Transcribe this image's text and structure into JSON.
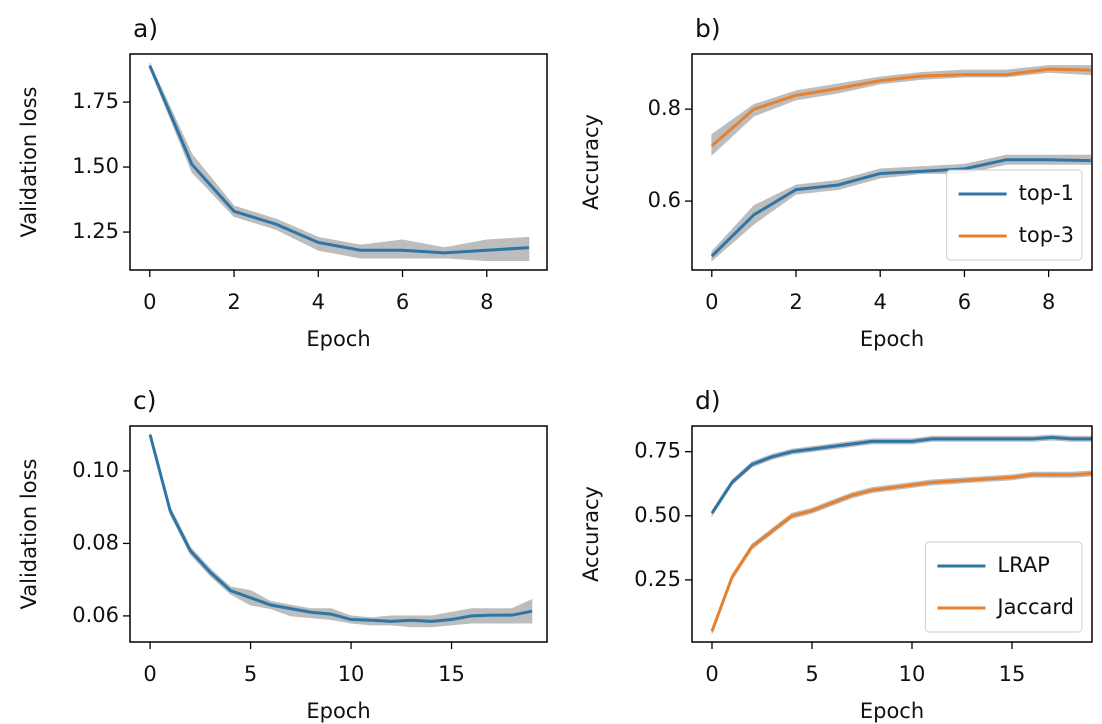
{
  "chart_data": [
    {
      "type": "line",
      "title": "a)",
      "xlabel": "Epoch",
      "ylabel": "Validation loss",
      "x": [
        0,
        1,
        2,
        3,
        4,
        5,
        6,
        7,
        8,
        9
      ],
      "series": [
        {
          "color": "#2e75a8",
          "values": [
            1.89,
            1.51,
            1.33,
            1.28,
            1.21,
            1.18,
            1.18,
            1.17,
            1.18,
            1.19
          ],
          "lower": [
            1.88,
            1.48,
            1.31,
            1.26,
            1.18,
            1.15,
            1.15,
            1.15,
            1.14,
            1.14
          ],
          "upper": [
            1.9,
            1.55,
            1.35,
            1.3,
            1.23,
            1.2,
            1.22,
            1.19,
            1.22,
            1.23
          ]
        }
      ],
      "band_color": "#bdbdbd",
      "xlim": [
        -0.47,
        9.43
      ],
      "xticks": [
        0,
        2,
        4,
        6,
        8
      ],
      "ylim": [
        1.104,
        1.935
      ],
      "yticks": [
        1.25,
        {
          "value": 1.5,
          "label": "1.50"
        },
        1.75
      ]
    },
    {
      "type": "line",
      "title": "b)",
      "xlabel": "Epoch",
      "ylabel": "Accuracy",
      "x": [
        0,
        1,
        2,
        3,
        4,
        5,
        6,
        7,
        8,
        9
      ],
      "series": [
        {
          "name": "top-1",
          "color": "#2e75a8",
          "values": [
            0.48,
            0.57,
            0.625,
            0.635,
            0.66,
            0.665,
            0.67,
            0.69,
            0.69,
            0.688
          ],
          "lower": [
            0.47,
            0.55,
            0.615,
            0.625,
            0.65,
            0.66,
            0.66,
            0.68,
            0.68,
            0.68
          ],
          "upper": [
            0.49,
            0.59,
            0.635,
            0.645,
            0.67,
            0.675,
            0.68,
            0.7,
            0.7,
            0.7
          ]
        },
        {
          "name": "top-3",
          "color": "#e8812d",
          "values": [
            0.72,
            0.8,
            0.83,
            0.845,
            0.862,
            0.872,
            0.875,
            0.875,
            0.887,
            0.885
          ],
          "lower": [
            0.7,
            0.785,
            0.82,
            0.835,
            0.855,
            0.865,
            0.87,
            0.87,
            0.88,
            0.875
          ],
          "upper": [
            0.745,
            0.81,
            0.84,
            0.855,
            0.87,
            0.88,
            0.885,
            0.885,
            0.895,
            0.895
          ]
        }
      ],
      "band_color": "#bdbdbd",
      "legend": "lower right",
      "xlim": [
        -0.47,
        9.03
      ],
      "xticks": [
        0,
        2,
        4,
        6,
        8
      ],
      "ylim": [
        0.45,
        0.92
      ],
      "yticks": [
        0.6,
        0.8
      ]
    },
    {
      "type": "line",
      "title": "c)",
      "xlabel": "Epoch",
      "ylabel": "Validation loss",
      "x": [
        0,
        1,
        2,
        3,
        4,
        5,
        6,
        7,
        8,
        9,
        10,
        11,
        12,
        13,
        14,
        15,
        16,
        17,
        18,
        19
      ],
      "series": [
        {
          "color": "#2e75a8",
          "values": [
            0.11,
            0.089,
            0.078,
            0.072,
            0.067,
            0.065,
            0.063,
            0.062,
            0.061,
            0.0605,
            0.059,
            0.0588,
            0.0585,
            0.0588,
            0.0585,
            0.059,
            0.06,
            0.0602,
            0.0602,
            0.0613
          ],
          "lower": [
            0.1095,
            0.088,
            0.077,
            0.071,
            0.066,
            0.063,
            0.062,
            0.06,
            0.0595,
            0.059,
            0.058,
            0.0575,
            0.0575,
            0.057,
            0.057,
            0.0575,
            0.058,
            0.058,
            0.058,
            0.058
          ],
          "upper": [
            0.1105,
            0.09,
            0.079,
            0.073,
            0.068,
            0.067,
            0.064,
            0.063,
            0.062,
            0.062,
            0.06,
            0.0595,
            0.06,
            0.06,
            0.06,
            0.061,
            0.062,
            0.062,
            0.062,
            0.0645
          ]
        }
      ],
      "band_color": "#bdbdbd",
      "xlim": [
        -1,
        19.75
      ],
      "xticks": [
        0,
        5,
        10,
        15
      ],
      "ylim": [
        0.0528,
        0.1124
      ],
      "yticks": [
        0.06,
        0.08,
        {
          "value": 0.1,
          "label": "0.10"
        }
      ]
    },
    {
      "type": "line",
      "title": "d)",
      "xlabel": "Epoch",
      "ylabel": "Accuracy",
      "x": [
        0,
        1,
        2,
        3,
        4,
        5,
        6,
        7,
        8,
        9,
        10,
        11,
        12,
        13,
        14,
        15,
        16,
        17,
        18,
        19
      ],
      "series": [
        {
          "name": "LRAP",
          "color": "#2e75a8",
          "values": [
            0.51,
            0.63,
            0.7,
            0.73,
            0.75,
            0.76,
            0.77,
            0.78,
            0.79,
            0.79,
            0.79,
            0.8,
            0.8,
            0.8,
            0.8,
            0.8,
            0.8,
            0.805,
            0.8,
            0.8
          ],
          "lower": [
            0.5,
            0.62,
            0.69,
            0.72,
            0.74,
            0.75,
            0.76,
            0.77,
            0.78,
            0.78,
            0.78,
            0.79,
            0.79,
            0.79,
            0.79,
            0.79,
            0.79,
            0.795,
            0.79,
            0.79
          ],
          "upper": [
            0.52,
            0.64,
            0.71,
            0.74,
            0.76,
            0.77,
            0.78,
            0.79,
            0.8,
            0.8,
            0.8,
            0.81,
            0.81,
            0.81,
            0.81,
            0.81,
            0.81,
            0.815,
            0.81,
            0.81
          ]
        },
        {
          "name": "Jaccard",
          "color": "#e8812d",
          "values": [
            0.05,
            0.26,
            0.38,
            0.44,
            0.5,
            0.52,
            0.55,
            0.58,
            0.6,
            0.61,
            0.62,
            0.63,
            0.635,
            0.64,
            0.645,
            0.65,
            0.66,
            0.66,
            0.66,
            0.665
          ],
          "lower": [
            0.04,
            0.25,
            0.37,
            0.43,
            0.49,
            0.51,
            0.54,
            0.57,
            0.59,
            0.6,
            0.61,
            0.62,
            0.625,
            0.63,
            0.635,
            0.64,
            0.65,
            0.65,
            0.65,
            0.655
          ],
          "upper": [
            0.06,
            0.27,
            0.39,
            0.45,
            0.51,
            0.53,
            0.56,
            0.59,
            0.61,
            0.62,
            0.63,
            0.64,
            0.645,
            0.65,
            0.655,
            0.66,
            0.67,
            0.67,
            0.67,
            0.675
          ]
        }
      ],
      "band_color": "#bdbdbd",
      "legend": "lower right",
      "xlim": [
        -1,
        19
      ],
      "xticks": [
        0,
        5,
        10,
        15
      ],
      "ylim": [
        0.008,
        0.85
      ],
      "yticks": [
        0.25,
        {
          "value": 0.5,
          "label": "0.50"
        },
        0.75
      ]
    }
  ]
}
